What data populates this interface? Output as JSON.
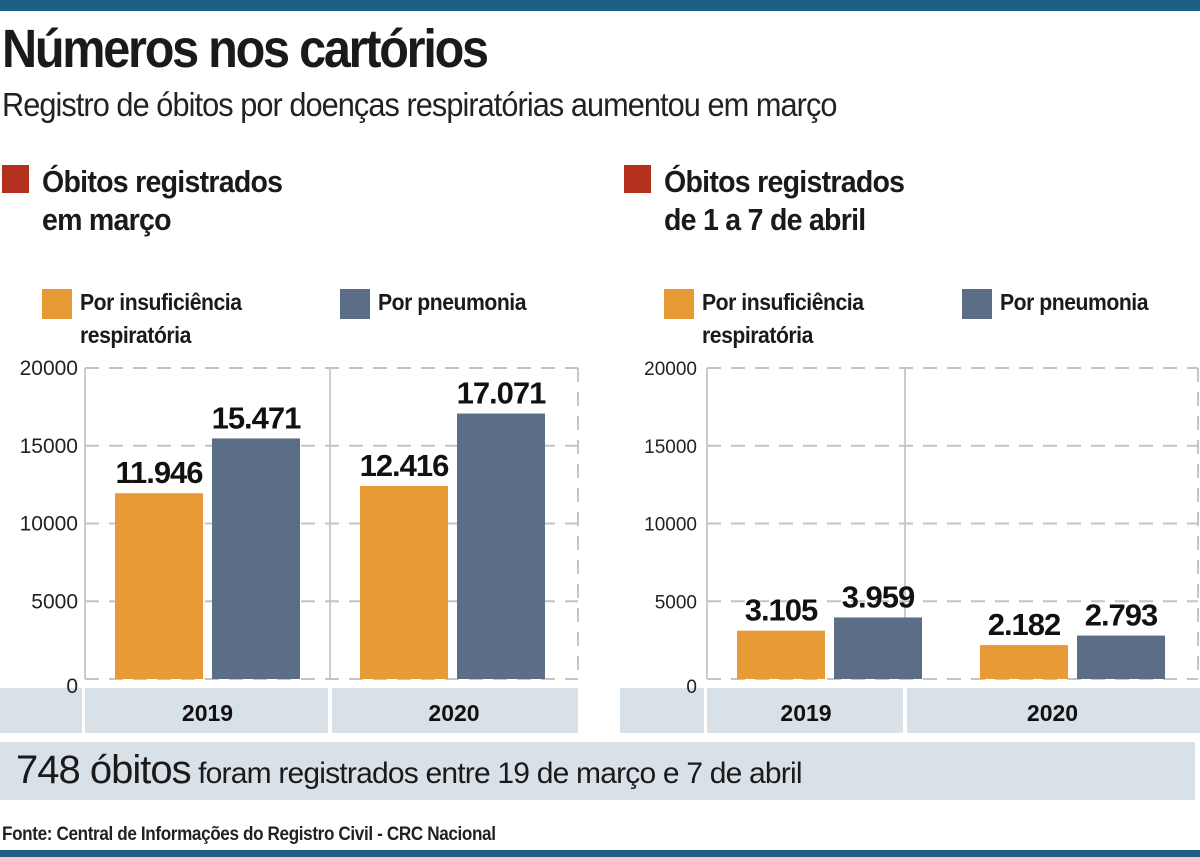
{
  "header": {
    "title": "Números nos cartórios",
    "subtitle": "Registro de óbitos por doenças respiratórias aumentou em março"
  },
  "colors": {
    "accent_bar": "#1d5f86",
    "section_marker": "#b3301d",
    "insuficiencia": "#e89a36",
    "pneumonia": "#5c6e87",
    "band": "#d9e1e8"
  },
  "legend": {
    "insuficiencia_line1": "Por insuficiência",
    "insuficiencia_line2": "respiratória",
    "pneumonia": "Por pneumonia"
  },
  "chart_data": [
    {
      "type": "bar",
      "title_line1": "Óbitos registrados",
      "title_line2": "em março",
      "categories": [
        "2019",
        "2020"
      ],
      "series": [
        {
          "name": "Por insuficiência respiratória",
          "values": [
            11946,
            12416
          ],
          "labels": [
            "11.946",
            "12.416"
          ]
        },
        {
          "name": "Por pneumonia",
          "values": [
            15471,
            17071
          ],
          "labels": [
            "15.471",
            "17.071"
          ]
        }
      ],
      "ylim": [
        0,
        20000
      ],
      "yticks": [
        "0",
        "5000",
        "10000",
        "15000",
        "20000"
      ],
      "grid": true,
      "legend_position": "top"
    },
    {
      "type": "bar",
      "title_line1": "Óbitos registrados",
      "title_line2": "de 1 a 7 de abril",
      "categories": [
        "2019",
        "2020"
      ],
      "series": [
        {
          "name": "Por insuficiência respiratória",
          "values": [
            3105,
            2182
          ],
          "labels": [
            "3.105",
            "2.182"
          ]
        },
        {
          "name": "Por pneumonia",
          "values": [
            3959,
            2793
          ],
          "labels": [
            "3.959",
            "2.793"
          ]
        }
      ],
      "ylim": [
        0,
        20000
      ],
      "yticks": [
        "0",
        "5000",
        "10000",
        "15000",
        "20000"
      ],
      "grid": true,
      "legend_position": "top"
    }
  ],
  "footer": {
    "highlight": "748 óbitos",
    "text": " foram registrados entre 19 de março e 7 de abril"
  },
  "source": "Fonte: Central de Informações do Registro Civil - CRC Nacional"
}
